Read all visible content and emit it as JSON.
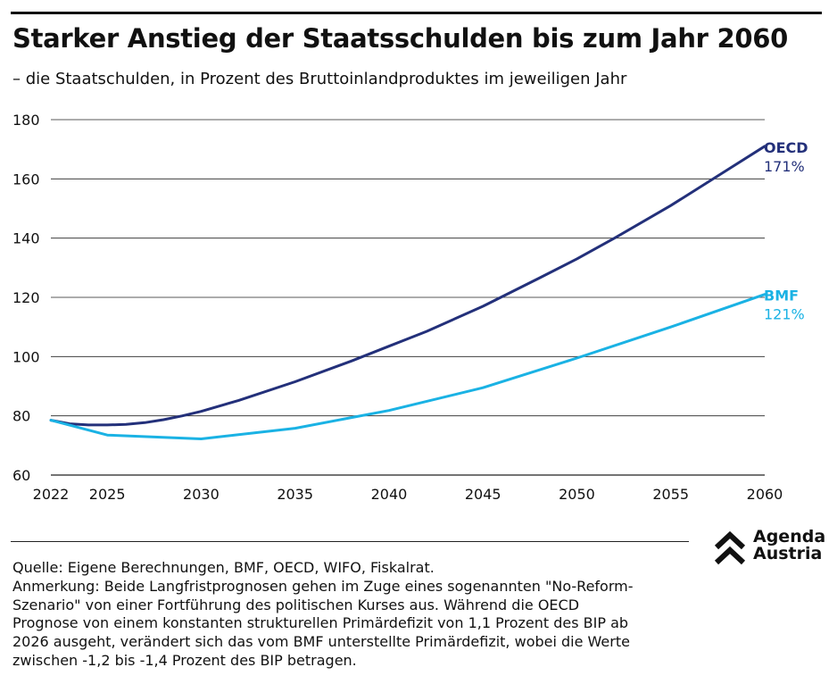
{
  "header": {
    "title": "Starker Anstieg der Staatsschulden bis zum Jahr 2060",
    "subtitle": "– die Staatschulden, in Prozent des Bruttoinlandproduktes im jeweiligen Jahr"
  },
  "chart_data": {
    "type": "line",
    "x_ticks": [
      2022,
      2025,
      2030,
      2035,
      2040,
      2045,
      2050,
      2055,
      2060
    ],
    "y_ticks": [
      60,
      80,
      100,
      120,
      140,
      160,
      180
    ],
    "xlim": [
      2022,
      2060
    ],
    "ylim": [
      60,
      180
    ],
    "grid": "horizontal",
    "series": [
      {
        "name": "OECD",
        "end_label": "171%",
        "color": "#23307a",
        "x": [
          2022,
          2023,
          2024,
          2025,
          2026,
          2027,
          2028,
          2029,
          2030,
          2032,
          2035,
          2038,
          2040,
          2042,
          2045,
          2048,
          2050,
          2052,
          2055,
          2058,
          2060
        ],
        "y": [
          78.5,
          77.3,
          76.9,
          76.9,
          77.1,
          77.7,
          78.7,
          80.0,
          81.5,
          85.2,
          91.5,
          98.5,
          103.5,
          108.5,
          117.0,
          126.5,
          133.0,
          140.0,
          151.0,
          163.0,
          171.0
        ]
      },
      {
        "name": "BMF",
        "end_label": "121%",
        "color": "#1ab2e4",
        "x": [
          2022,
          2025,
          2030,
          2035,
          2040,
          2045,
          2050,
          2055,
          2060
        ],
        "y": [
          78.5,
          73.5,
          72.2,
          75.8,
          81.8,
          89.5,
          99.5,
          110.0,
          121.0
        ]
      }
    ]
  },
  "footer": {
    "source": "Quelle: Eigene Berechnungen, BMF, OECD, WIFO, Fiskalrat.",
    "note": "Anmerkung: Beide Langfristprognosen gehen im Zuge eines sogenannten \"No-Reform-\nSzenario\" von einer Fortführung des politischen Kurses aus. Während die OECD\nPrognose von einem konstanten strukturellen Primärdefizit von 1,1 Prozent des BIP ab\n2026 ausgeht, verändert sich das vom BMF unterstellte Primärdefizit, wobei die Werte\nzwischen -1,2 bis -1,4 Prozent des BIP betragen."
  },
  "logo": {
    "line1": "Agenda",
    "line2": "Austria"
  }
}
